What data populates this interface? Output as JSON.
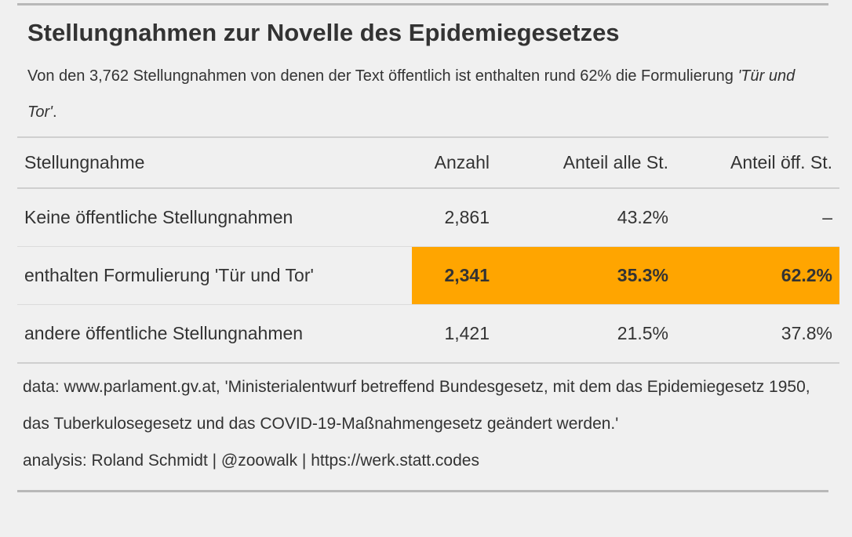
{
  "title": "Stellungnahmen zur Novelle des Epidemiegesetzes",
  "subtitle": {
    "text": "Von den 3,762 Stellungnahmen von denen der Text öffentlich ist enthalten rund 62% die Formulierung ",
    "emphasis": "'Tür und Tor'",
    "end": "."
  },
  "colors": {
    "highlight": "#ffa500",
    "background": "#f0f0f0",
    "text": "#333333"
  },
  "chart_data": {
    "type": "table",
    "columns": [
      "Stellungnahme",
      "Anzahl",
      "Anteil alle St.",
      "Anteil öff. St."
    ],
    "rows": [
      {
        "label": "Keine öffentliche Stellungnahmen",
        "count": "2,861",
        "share_all": "43.2%",
        "share_public": "–",
        "highlight": false
      },
      {
        "label": "enthalten Formulierung 'Tür und Tor'",
        "count": "2,341",
        "share_all": "35.3%",
        "share_public": "62.2%",
        "highlight": true
      },
      {
        "label": "andere öffentliche Stellungnahmen",
        "count": "1,421",
        "share_all": "21.5%",
        "share_public": "37.8%",
        "highlight": false
      }
    ]
  },
  "source": {
    "data": "data: www.parlament.gv.at, 'Ministerialentwurf betreffend Bundesgesetz, mit dem das Epidemiegesetz 1950, das Tuberkulosegesetz und das COVID-19-Maßnahmengesetz geändert werden.'",
    "analysis": "analysis: Roland Schmidt | @zoowalk | https://werk.statt.codes"
  }
}
